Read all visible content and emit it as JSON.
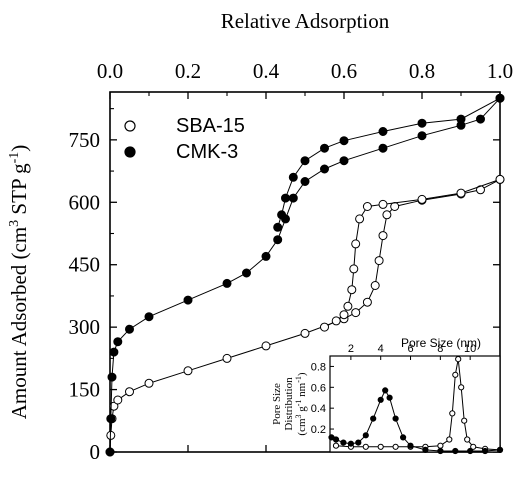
{
  "chart_data": [
    {
      "type": "scatter",
      "xlabel": "Relative Adsorption",
      "ylabel": "Amount Adsorbed (cm^3 STP g^-1)",
      "ylabel_parts": {
        "main": "Amount Adsorbed (cm",
        "sup1": "3",
        "mid": " STP g",
        "sup2": "-1",
        "end": ")"
      },
      "xlim": [
        0,
        1.0
      ],
      "ylim": [
        0,
        865
      ],
      "xticks": [
        "0.0",
        "0.2",
        "0.4",
        "0.6",
        "0.8",
        "1.0"
      ],
      "xtick_values": [
        0,
        0.2,
        0.4,
        0.6,
        0.8,
        1.0
      ],
      "yticks": [
        "0",
        "150",
        "300",
        "450",
        "600",
        "750"
      ],
      "ytick_values": [
        0,
        150,
        300,
        450,
        600,
        750
      ],
      "x_axis_position": "top",
      "legend_position": "top-left",
      "series": [
        {
          "name": "SBA-15",
          "marker": "open-circle",
          "adsorption": [
            [
              0.0,
              0
            ],
            [
              0.002,
              40
            ],
            [
              0.005,
              80
            ],
            [
              0.01,
              110
            ],
            [
              0.02,
              125
            ],
            [
              0.05,
              145
            ],
            [
              0.1,
              165
            ],
            [
              0.2,
              195
            ],
            [
              0.3,
              225
            ],
            [
              0.4,
              255
            ],
            [
              0.5,
              285
            ],
            [
              0.6,
              320
            ],
            [
              0.63,
              335
            ],
            [
              0.66,
              360
            ],
            [
              0.68,
              400
            ],
            [
              0.69,
              460
            ],
            [
              0.7,
              520
            ],
            [
              0.71,
              570
            ],
            [
              0.73,
              590
            ],
            [
              0.8,
              605
            ],
            [
              0.9,
              620
            ],
            [
              0.95,
              630
            ],
            [
              1.0,
              655
            ]
          ],
          "desorption": [
            [
              1.0,
              655
            ],
            [
              0.9,
              622
            ],
            [
              0.8,
              607
            ],
            [
              0.7,
              595
            ],
            [
              0.66,
              590
            ],
            [
              0.64,
              560
            ],
            [
              0.63,
              500
            ],
            [
              0.625,
              440
            ],
            [
              0.62,
              390
            ],
            [
              0.61,
              350
            ],
            [
              0.6,
              330
            ],
            [
              0.58,
              315
            ],
            [
              0.55,
              300
            ]
          ]
        },
        {
          "name": "CMK-3",
          "marker": "filled-circle",
          "adsorption": [
            [
              0.0,
              0
            ],
            [
              0.002,
              80
            ],
            [
              0.005,
              180
            ],
            [
              0.01,
              240
            ],
            [
              0.02,
              265
            ],
            [
              0.05,
              295
            ],
            [
              0.1,
              325
            ],
            [
              0.2,
              365
            ],
            [
              0.3,
              405
            ],
            [
              0.35,
              430
            ],
            [
              0.4,
              470
            ],
            [
              0.43,
              510
            ],
            [
              0.45,
              560
            ],
            [
              0.47,
              610
            ],
            [
              0.5,
              650
            ],
            [
              0.55,
              680
            ],
            [
              0.6,
              700
            ],
            [
              0.7,
              730
            ],
            [
              0.8,
              760
            ],
            [
              0.9,
              785
            ],
            [
              0.95,
              800
            ],
            [
              1.0,
              850
            ]
          ],
          "desorption": [
            [
              1.0,
              850
            ],
            [
              0.9,
              800
            ],
            [
              0.8,
              790
            ],
            [
              0.7,
              770
            ],
            [
              0.6,
              748
            ],
            [
              0.55,
              730
            ],
            [
              0.5,
              700
            ],
            [
              0.47,
              660
            ],
            [
              0.45,
              610
            ],
            [
              0.44,
              570
            ],
            [
              0.43,
              540
            ]
          ]
        }
      ]
    },
    {
      "type": "scatter",
      "inset": true,
      "xlabel": "Pore Size (nm)",
      "ylabel": "Pore Size Distribution (cm^3 g^-1 nm^-1)",
      "ylabel_lines": [
        "Pore Size",
        "Distribution"
      ],
      "ylabel_unit": {
        "open": "(cm",
        "sup1": "3",
        "g": " g",
        "sup2": "-1",
        "nm": " nm",
        "sup3": "-1",
        "close": ")"
      },
      "xlim": [
        0.6,
        12
      ],
      "ylim": [
        -0.02,
        0.9
      ],
      "xticks": [
        "2",
        "4",
        "6",
        "8",
        "10"
      ],
      "xtick_values": [
        2,
        4,
        6,
        8,
        10
      ],
      "yticks": [
        "0.2",
        "0.4",
        "0.6",
        "0.8"
      ],
      "ytick_values": [
        0.2,
        0.4,
        0.6,
        0.8
      ],
      "x_axis_position": "top",
      "series": [
        {
          "name": "SBA-15",
          "marker": "open-circle",
          "points": [
            [
              1.0,
              0.04
            ],
            [
              2.0,
              0.03
            ],
            [
              3.0,
              0.03
            ],
            [
              4.0,
              0.03
            ],
            [
              5.0,
              0.03
            ],
            [
              6.0,
              0.03
            ],
            [
              7.0,
              0.03
            ],
            [
              8.0,
              0.04
            ],
            [
              8.6,
              0.1
            ],
            [
              8.8,
              0.35
            ],
            [
              9.0,
              0.72
            ],
            [
              9.2,
              0.87
            ],
            [
              9.4,
              0.6
            ],
            [
              9.6,
              0.28
            ],
            [
              9.8,
              0.1
            ],
            [
              10.2,
              0.03
            ],
            [
              11.0,
              0.01
            ],
            [
              12.0,
              0.0
            ]
          ]
        },
        {
          "name": "CMK-3",
          "marker": "filled-circle",
          "points": [
            [
              0.7,
              0.12
            ],
            [
              1.0,
              0.1
            ],
            [
              1.5,
              0.07
            ],
            [
              2.0,
              0.06
            ],
            [
              2.5,
              0.07
            ],
            [
              3.0,
              0.14
            ],
            [
              3.5,
              0.3
            ],
            [
              4.0,
              0.48
            ],
            [
              4.3,
              0.57
            ],
            [
              4.6,
              0.5
            ],
            [
              5.0,
              0.3
            ],
            [
              5.5,
              0.12
            ],
            [
              6.0,
              0.04
            ],
            [
              7.0,
              0.0
            ],
            [
              8.0,
              -0.01
            ],
            [
              9.0,
              -0.01
            ],
            [
              10.0,
              -0.01
            ],
            [
              11.0,
              -0.01
            ],
            [
              12.0,
              0.0
            ]
          ]
        }
      ]
    }
  ]
}
